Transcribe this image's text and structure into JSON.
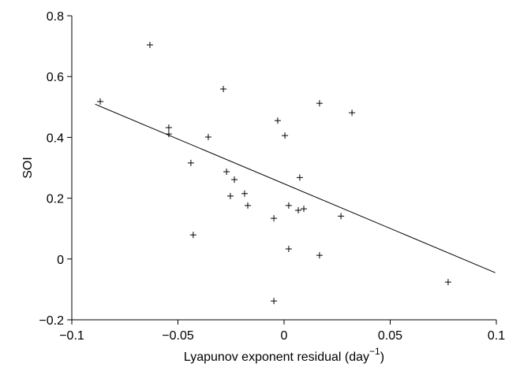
{
  "chart_data": {
    "type": "scatter",
    "xlabel": [
      "Lyapunov exponent residual (day",
      "−1",
      ")"
    ],
    "ylabel": "SOI",
    "x": [
      -0.0866,
      -0.0632,
      -0.0286,
      -0.0543,
      -0.0543,
      -0.0357,
      -0.0439,
      -0.0428,
      -0.0271,
      -0.0234,
      -0.0253,
      -0.0186,
      -0.0171,
      -0.003,
      0.0004,
      -0.0048,
      0.0022,
      0.0074,
      0.0067,
      0.0093,
      0.0022,
      -0.0048,
      0.0167,
      0.032,
      0.0268,
      0.0167,
      0.0773
    ],
    "y": [
      0.518,
      0.704,
      0.559,
      0.432,
      0.411,
      0.401,
      0.316,
      0.079,
      0.287,
      0.261,
      0.207,
      0.215,
      0.176,
      0.455,
      0.406,
      0.134,
      0.176,
      0.268,
      0.16,
      0.165,
      0.033,
      -0.138,
      0.512,
      0.481,
      0.141,
      0.012,
      -0.076
    ],
    "color": "#000000",
    "marker": "plus",
    "fit": {
      "x": [
        -0.089,
        0.0995
      ],
      "y": [
        0.509,
        -0.045
      ]
    },
    "xlim": [
      -0.1,
      0.1
    ],
    "ylim": [
      -0.2,
      0.8
    ],
    "xticks": [
      {
        "value": -0.1,
        "label": "−0.1"
      },
      {
        "value": -0.05,
        "label": "−0.05"
      },
      0,
      0.05,
      0.1
    ],
    "yticks": [
      {
        "value": -0.2,
        "label": "−0.2"
      },
      0,
      0.2,
      0.4,
      0.6,
      0.8
    ],
    "grid": false
  }
}
